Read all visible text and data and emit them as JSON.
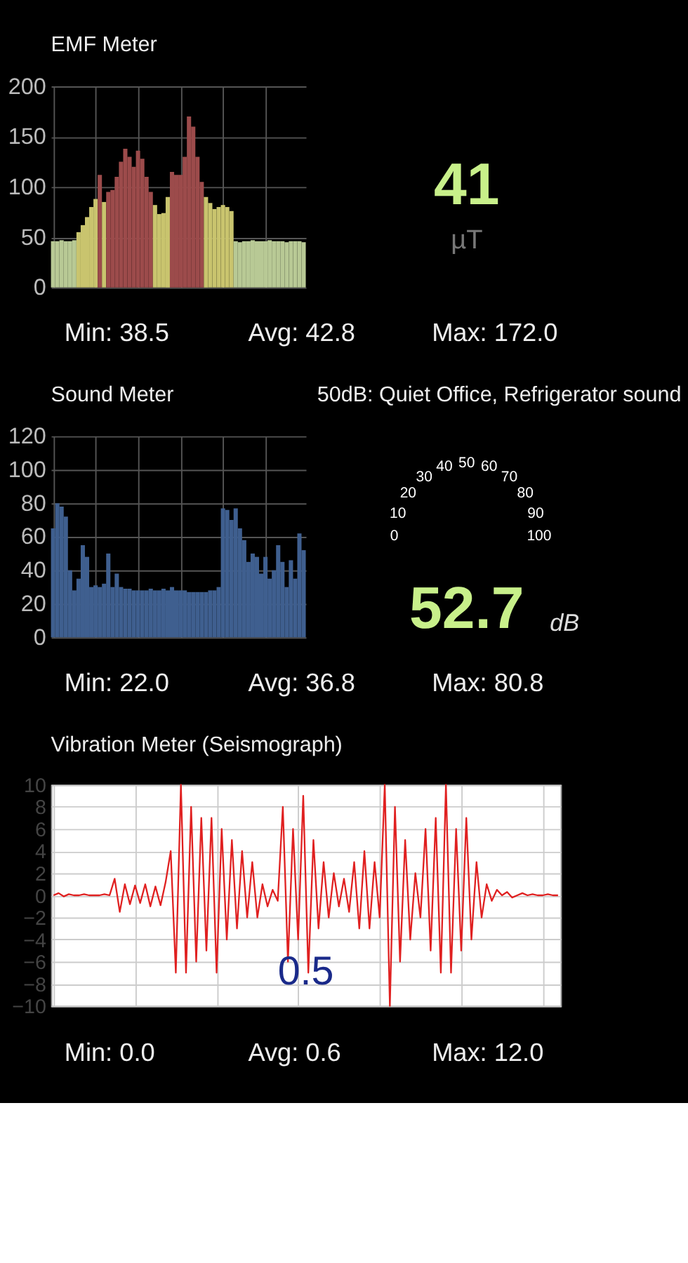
{
  "chart_data": [
    {
      "type": "bar",
      "title": "EMF Meter",
      "categories": [
        null,
        null,
        null,
        null,
        null,
        null,
        null,
        null,
        null,
        null,
        null,
        null,
        null,
        null,
        null,
        null,
        null,
        null,
        null,
        null,
        null,
        null,
        null,
        null,
        null,
        null,
        null,
        null,
        null,
        null,
        null,
        null,
        null,
        null,
        null,
        null,
        null,
        null,
        null,
        null,
        null,
        null,
        null,
        null,
        null,
        null,
        null,
        null,
        null,
        null,
        null,
        null,
        null,
        null,
        null,
        null,
        null,
        null,
        null,
        null
      ],
      "values": [
        46,
        46,
        47,
        46,
        46,
        47,
        55,
        62,
        70,
        80,
        88,
        112,
        85,
        95,
        97,
        110,
        125,
        138,
        130,
        120,
        136,
        128,
        110,
        95,
        82,
        73,
        74,
        90,
        115,
        112,
        112,
        130,
        170,
        160,
        130,
        105,
        90,
        84,
        78,
        80,
        82,
        80,
        76,
        46,
        45,
        46,
        46,
        47,
        46,
        46,
        46,
        47,
        46,
        46,
        46,
        45,
        46,
        46,
        46,
        45
      ],
      "colors": [
        "#b8c995",
        "#b8c995",
        "#b8c995",
        "#b8c995",
        "#b8c995",
        "#b8c995",
        "#c9c46e",
        "#c9c46e",
        "#c9c46e",
        "#c9c46e",
        "#c9c46e",
        "#9c4b4b",
        "#c9c46e",
        "#9c4b4b",
        "#9c4b4b",
        "#9c4b4b",
        "#9c4b4b",
        "#9c4b4b",
        "#9c4b4b",
        "#9c4b4b",
        "#9c4b4b",
        "#9c4b4b",
        "#9c4b4b",
        "#9c4b4b",
        "#c9c46e",
        "#c9c46e",
        "#c9c46e",
        "#c9c46e",
        "#9c4b4b",
        "#9c4b4b",
        "#9c4b4b",
        "#9c4b4b",
        "#9c4b4b",
        "#9c4b4b",
        "#9c4b4b",
        "#9c4b4b",
        "#c9c46e",
        "#c9c46e",
        "#c9c46e",
        "#c9c46e",
        "#c9c46e",
        "#c9c46e",
        "#c9c46e",
        "#b8c995",
        "#b8c995",
        "#b8c995",
        "#b8c995",
        "#b8c995",
        "#b8c995",
        "#b8c995",
        "#b8c995",
        "#b8c995",
        "#b8c995",
        "#b8c995",
        "#b8c995",
        "#b8c995",
        "#b8c995",
        "#b8c995",
        "#b8c995",
        "#b8c995"
      ],
      "ylim": [
        0,
        200
      ],
      "yticks": [
        0,
        50,
        100,
        150,
        200
      ],
      "grid": true,
      "annotations": [
        "Min: 38.5",
        "Avg: 42.8",
        "Max: 172.0"
      ]
    },
    {
      "type": "other",
      "annotations": [
        "41",
        "µT"
      ]
    },
    {
      "type": "bar",
      "title": "Sound Meter",
      "subtitle": "50dB: Quiet Office, Refrigerator sound",
      "categories": [
        null,
        null,
        null,
        null,
        null,
        null,
        null,
        null,
        null,
        null,
        null,
        null,
        null,
        null,
        null,
        null,
        null,
        null,
        null,
        null,
        null,
        null,
        null,
        null,
        null,
        null,
        null,
        null,
        null,
        null,
        null,
        null,
        null,
        null,
        null,
        null,
        null,
        null,
        null,
        null,
        null,
        null,
        null,
        null,
        null,
        null,
        null,
        null,
        null,
        null,
        null,
        null,
        null,
        null,
        null,
        null,
        null,
        null,
        null,
        null
      ],
      "values": [
        65,
        80,
        78,
        72,
        40,
        28,
        35,
        55,
        48,
        30,
        31,
        30,
        32,
        50,
        30,
        38,
        30,
        29,
        29,
        28,
        28,
        28,
        28,
        29,
        28,
        28,
        29,
        28,
        30,
        28,
        28,
        28,
        27,
        27,
        27,
        27,
        27,
        28,
        28,
        30,
        77,
        76,
        70,
        77,
        65,
        58,
        45,
        50,
        48,
        38,
        48,
        35,
        40,
        55,
        45,
        30,
        46,
        35,
        62,
        52
      ],
      "color": "#3f5f8f",
      "ylim": [
        0,
        120
      ],
      "yticks": [
        0,
        20,
        40,
        60,
        80,
        100,
        120
      ],
      "grid": true,
      "annotations": [
        "Min: 22.0",
        "Avg: 36.8",
        "Max: 80.8"
      ]
    },
    {
      "type": "other",
      "categories": [
        "0",
        "10",
        "20",
        "30",
        "40",
        "50",
        "60",
        "70",
        "80",
        "90",
        "100"
      ],
      "annotations": [
        "52.7",
        "dB"
      ]
    },
    {
      "type": "line",
      "title": "Vibration Meter (Seismograph)",
      "categories": [
        null,
        null,
        null,
        null,
        null,
        null,
        null,
        null,
        null,
        null,
        null,
        null,
        null,
        null,
        null,
        null,
        null,
        null,
        null,
        null,
        null,
        null,
        null,
        null,
        null,
        null,
        null,
        null,
        null,
        null,
        null,
        null,
        null,
        null,
        null,
        null,
        null,
        null,
        null,
        null,
        null,
        null,
        null,
        null,
        null,
        null,
        null,
        null,
        null,
        null,
        null,
        null,
        null,
        null,
        null,
        null,
        null,
        null,
        null,
        null,
        null,
        null,
        null,
        null,
        null,
        null,
        null,
        null,
        null,
        null,
        null,
        null,
        null,
        null,
        null,
        null,
        null,
        null,
        null,
        null,
        null,
        null,
        null,
        null,
        null,
        null,
        null,
        null,
        null,
        null,
        null,
        null,
        null,
        null,
        null,
        null,
        null,
        null,
        null,
        null
      ],
      "values": [
        0,
        0.2,
        -0.1,
        0.1,
        0,
        0,
        0.1,
        0,
        0,
        0,
        0.1,
        0,
        1.5,
        -1.5,
        1,
        -0.8,
        0.9,
        -0.7,
        1,
        -1,
        0.8,
        -0.9,
        1.2,
        4,
        -7,
        10,
        -7,
        8,
        -6,
        7,
        -5,
        7,
        -7,
        6,
        -4,
        5,
        -3,
        4,
        -2,
        3,
        -2,
        1,
        -1,
        0.5,
        -0.5,
        8,
        -6,
        6,
        -4,
        9,
        -7,
        5,
        -3,
        3,
        -2,
        2,
        -1,
        1.5,
        -1.5,
        3,
        -3,
        4,
        -3,
        3,
        -2,
        10,
        -10,
        8,
        -6,
        5,
        -4,
        2,
        -2,
        6,
        -5,
        7,
        -7,
        10,
        -7,
        6,
        -5,
        7,
        -4,
        3,
        -2,
        1,
        -0.5,
        0.5,
        0,
        0.3,
        -0.2,
        0,
        0.2,
        0,
        0.1,
        0,
        0,
        0.1,
        0,
        0
      ],
      "color": "#e02020",
      "ylim": [
        -10,
        10
      ],
      "yticks": [
        -10,
        -8,
        -6,
        -4,
        -2,
        0,
        2,
        4,
        6,
        8,
        10
      ],
      "grid": true,
      "annotations": [
        "0.5",
        "Min: 0.0",
        "Avg: 0.6",
        "Max: 12.0"
      ]
    }
  ]
}
